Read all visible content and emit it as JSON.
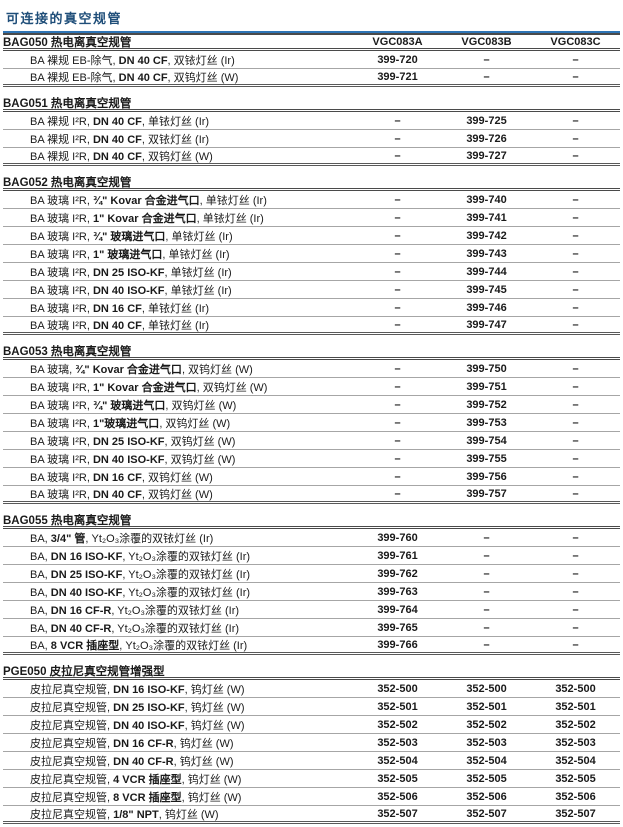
{
  "page": {
    "title": "可连接的真空规管"
  },
  "table": {
    "column_headers": [
      "VGC083A",
      "VGC083B",
      "VGC083C"
    ],
    "empty_cell": "–",
    "sections": [
      {
        "header": "BAG050 热电离真空规管",
        "show_columns": true,
        "rows": [
          {
            "pre": "BA 裸规 EB-除气, ",
            "spec": "DN 40 CF",
            "post": ", 双铱灯丝 (Ir)",
            "values": [
              "399-720",
              "–",
              "–"
            ]
          },
          {
            "pre": "BA 裸规 EB-除气, ",
            "spec": "DN 40 CF",
            "post": ", 双钨灯丝 (W)",
            "values": [
              "399-721",
              "–",
              "–"
            ]
          }
        ]
      },
      {
        "header": "BAG051 热电离真空规管",
        "show_columns": false,
        "rows": [
          {
            "pre": "BA 裸规 I²R, ",
            "spec": "DN 40 CF",
            "post": ", 单铱灯丝 (Ir)",
            "values": [
              "–",
              "399-725",
              "–"
            ]
          },
          {
            "pre": "BA 裸规 I²R, ",
            "spec": "DN 40 CF",
            "post": ", 双铱灯丝 (Ir)",
            "values": [
              "–",
              "399-726",
              "–"
            ]
          },
          {
            "pre": "BA 裸规 I²R, ",
            "spec": "DN 40 CF",
            "post": ", 双钨灯丝 (W)",
            "values": [
              "–",
              "399-727",
              "–"
            ]
          }
        ]
      },
      {
        "header": "BAG052 热电离真空规管",
        "show_columns": false,
        "rows": [
          {
            "pre": "BA 玻璃 I²R, ",
            "spec": "¾\" Kovar 合金进气口",
            "post": ", 单铱灯丝 (Ir)",
            "values": [
              "–",
              "399-740",
              "–"
            ]
          },
          {
            "pre": "BA 玻璃 I²R, ",
            "spec": "1\" Kovar 合金进气口",
            "post": ", 单铱灯丝 (Ir)",
            "values": [
              "–",
              "399-741",
              "–"
            ]
          },
          {
            "pre": "BA 玻璃 I²R, ",
            "spec": "¾\" 玻璃进气口",
            "post": ", 单铱灯丝 (Ir)",
            "values": [
              "–",
              "399-742",
              "–"
            ]
          },
          {
            "pre": "BA 玻璃 I²R, ",
            "spec": "1\" 玻璃进气口",
            "post": ", 单铱灯丝 (Ir)",
            "values": [
              "–",
              "399-743",
              "–"
            ]
          },
          {
            "pre": "BA 玻璃 I²R, ",
            "spec": "DN 25 ISO-KF",
            "post": ", 单铱灯丝 (Ir)",
            "values": [
              "–",
              "399-744",
              "–"
            ]
          },
          {
            "pre": "BA 玻璃 I²R, ",
            "spec": "DN 40 ISO-KF",
            "post": ", 单铱灯丝 (Ir)",
            "values": [
              "–",
              "399-745",
              "–"
            ]
          },
          {
            "pre": "BA 玻璃 I²R, ",
            "spec": "DN 16 CF",
            "post": ", 单铱灯丝 (Ir)",
            "values": [
              "–",
              "399-746",
              "–"
            ]
          },
          {
            "pre": "BA 玻璃 I²R, ",
            "spec": "DN 40 CF",
            "post": ", 单铱灯丝 (Ir)",
            "values": [
              "–",
              "399-747",
              "–"
            ]
          }
        ]
      },
      {
        "header": "BAG053 热电离真空规管",
        "show_columns": false,
        "rows": [
          {
            "pre": "BA 玻璃, ",
            "spec": "¾\" Kovar 合金进气口",
            "post": ", 双钨灯丝 (W)",
            "values": [
              "–",
              "399-750",
              "–"
            ]
          },
          {
            "pre": "BA 玻璃 I²R, ",
            "spec": "1\" Kovar 合金进气口",
            "post": ", 双钨灯丝 (W)",
            "values": [
              "–",
              "399-751",
              "–"
            ]
          },
          {
            "pre": "BA 玻璃 I²R, ",
            "spec": "¾\" 玻璃进气口",
            "post": ", 双钨灯丝 (W)",
            "values": [
              "–",
              "399-752",
              "–"
            ]
          },
          {
            "pre": "BA 玻璃 I²R, ",
            "spec": "1\"玻璃进气口",
            "post": ", 双钨灯丝 (W)",
            "values": [
              "–",
              "399-753",
              "–"
            ]
          },
          {
            "pre": "BA 玻璃 I²R, ",
            "spec": "DN 25 ISO-KF",
            "post": ", 双钨灯丝 (W)",
            "values": [
              "–",
              "399-754",
              "–"
            ]
          },
          {
            "pre": "BA 玻璃 I²R, ",
            "spec": "DN 40 ISO-KF",
            "post": ", 双钨灯丝 (W)",
            "values": [
              "–",
              "399-755",
              "–"
            ]
          },
          {
            "pre": "BA 玻璃 I²R, ",
            "spec": "DN 16 CF",
            "post": ", 双钨灯丝 (W)",
            "values": [
              "–",
              "399-756",
              "–"
            ]
          },
          {
            "pre": "BA 玻璃 I²R, ",
            "spec": "DN 40 CF",
            "post": ", 双钨灯丝 (W)",
            "values": [
              "–",
              "399-757",
              "–"
            ]
          }
        ]
      },
      {
        "header": "BAG055 热电离真空规管",
        "show_columns": false,
        "rows": [
          {
            "pre": "BA, ",
            "spec": "3/4\" 管",
            "post": ", Yt₂O₃涂覆的双铱灯丝 (Ir)",
            "values": [
              "399-760",
              "–",
              "–"
            ]
          },
          {
            "pre": "BA, ",
            "spec": "DN 16 ISO-KF",
            "post": ", Yt₂O₃涂覆的双铱灯丝 (Ir)",
            "values": [
              "399-761",
              "–",
              "–"
            ]
          },
          {
            "pre": "BA, ",
            "spec": "DN 25 ISO-KF",
            "post": ", Yt₂O₃涂覆的双铱灯丝 (Ir)",
            "values": [
              "399-762",
              "–",
              "–"
            ]
          },
          {
            "pre": "BA, ",
            "spec": "DN 40 ISO-KF",
            "post": ", Yt₂O₃涂覆的双铱灯丝 (Ir)",
            "values": [
              "399-763",
              "–",
              "–"
            ]
          },
          {
            "pre": "BA, ",
            "spec": "DN 16 CF-R",
            "post": ", Yt₂O₃涂覆的双铱灯丝 (Ir)",
            "values": [
              "399-764",
              "–",
              "–"
            ]
          },
          {
            "pre": "BA, ",
            "spec": "DN 40 CF-R",
            "post": ", Yt₂O₃涂覆的双铱灯丝 (Ir)",
            "values": [
              "399-765",
              "–",
              "–"
            ]
          },
          {
            "pre": "BA, ",
            "spec": "8 VCR 插座型",
            "post": ", Yt₂O₃涂覆的双铱灯丝 (Ir)",
            "values": [
              "399-766",
              "–",
              "–"
            ]
          }
        ]
      },
      {
        "header": "PGE050 皮拉尼真空规管增强型",
        "show_columns": false,
        "rows": [
          {
            "pre": "皮拉尼真空规管, ",
            "spec": "DN 16 ISO-KF",
            "post": ", 钨灯丝 (W)",
            "values": [
              "352-500",
              "352-500",
              "352-500"
            ]
          },
          {
            "pre": "皮拉尼真空规管, ",
            "spec": "DN 25 ISO-KF",
            "post": ", 钨灯丝 (W)",
            "values": [
              "352-501",
              "352-501",
              "352-501"
            ]
          },
          {
            "pre": "皮拉尼真空规管, ",
            "spec": "DN 40 ISO-KF",
            "post": ", 钨灯丝 (W)",
            "values": [
              "352-502",
              "352-502",
              "352-502"
            ]
          },
          {
            "pre": "皮拉尼真空规管, ",
            "spec": "DN 16 CF-R",
            "post": ", 钨灯丝 (W)",
            "values": [
              "352-503",
              "352-503",
              "352-503"
            ]
          },
          {
            "pre": "皮拉尼真空规管, ",
            "spec": "DN 40 CF-R",
            "post": ", 钨灯丝 (W)",
            "values": [
              "352-504",
              "352-504",
              "352-504"
            ]
          },
          {
            "pre": "皮拉尼真空规管, ",
            "spec": "4 VCR 插座型",
            "post": ", 钨灯丝 (W)",
            "values": [
              "352-505",
              "352-505",
              "352-505"
            ]
          },
          {
            "pre": "皮拉尼真空规管, ",
            "spec": "8 VCR 插座型",
            "post": ", 钨灯丝 (W)",
            "values": [
              "352-506",
              "352-506",
              "352-506"
            ]
          },
          {
            "pre": "皮拉尼真空规管, ",
            "spec": "1/8\" NPT",
            "post": ", 钨灯丝 (W)",
            "values": [
              "352-507",
              "352-507",
              "352-507"
            ]
          }
        ]
      }
    ]
  },
  "colors": {
    "title_text": "#1f4e79",
    "title_underline": "#2e74b5",
    "header_rule": "#4a4a4a",
    "row_rule": "#a6a6a6",
    "body_text": "#1a1a1a"
  }
}
